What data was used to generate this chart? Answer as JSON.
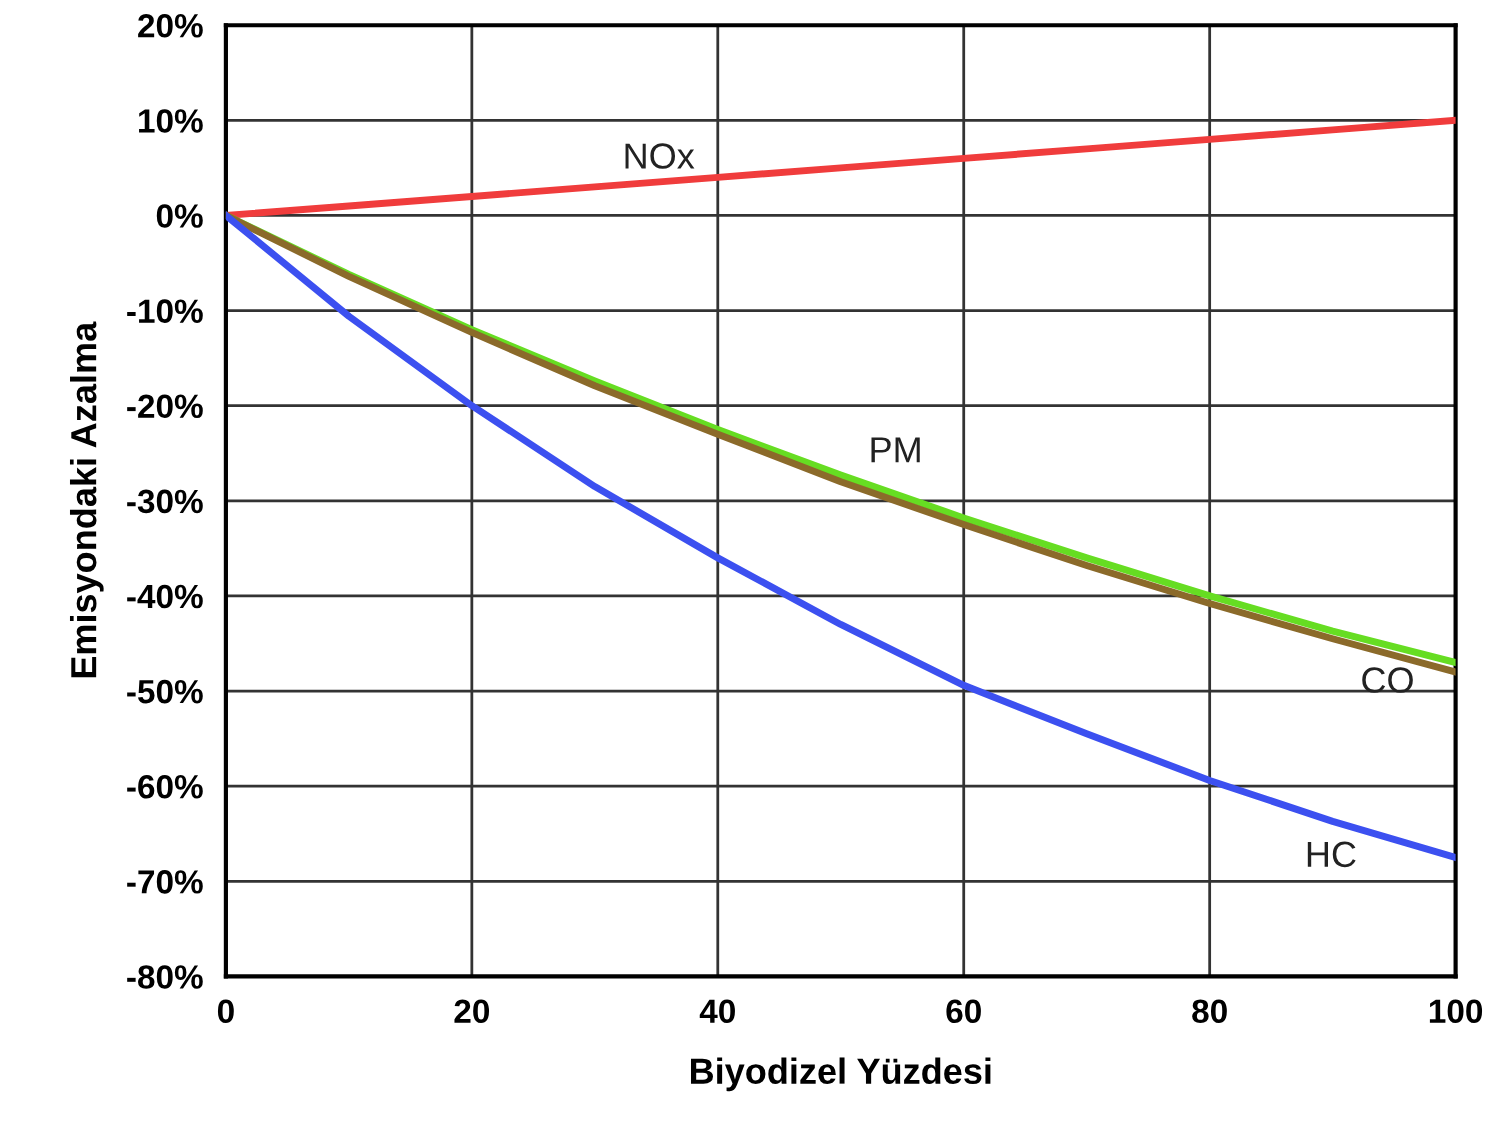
{
  "chart_data": {
    "type": "line",
    "xlabel": "Biyodizel Yüzdesi",
    "ylabel": "Emisyondaki Azalma",
    "x": [
      0,
      10,
      20,
      30,
      40,
      50,
      60,
      70,
      80,
      90,
      100
    ],
    "series": [
      {
        "name": "NOx",
        "color": "#f03c3c",
        "values": [
          0,
          1,
          2,
          3,
          4,
          5,
          6,
          7,
          8,
          9,
          10
        ]
      },
      {
        "name": "PM",
        "color": "#66dd22",
        "values": [
          0,
          -6.2,
          -12,
          -17.4,
          -22.5,
          -27.3,
          -31.8,
          -36,
          -40,
          -43.7,
          -47
        ]
      },
      {
        "name": "CO",
        "color": "#8b6a2a",
        "values": [
          0,
          -6.4,
          -12.3,
          -17.9,
          -23,
          -28,
          -32.5,
          -36.8,
          -40.8,
          -44.5,
          -48
        ]
      },
      {
        "name": "HC",
        "color": "#3c50f0",
        "values": [
          0,
          -10.6,
          -20,
          -28.5,
          -36,
          -43,
          -49.4,
          -54.5,
          -59.4,
          -63.7,
          -67.5
        ]
      }
    ],
    "xlim": [
      0,
      100
    ],
    "xticks": [
      0,
      20,
      40,
      60,
      80,
      100
    ],
    "ylim": [
      -80,
      20
    ],
    "yticks": [
      {
        "value": 20,
        "label": "20%"
      },
      {
        "value": 10,
        "label": "10%"
      },
      {
        "value": 0,
        "label": "0%"
      },
      {
        "value": -10,
        "label": "-10%"
      },
      {
        "value": -20,
        "label": "-20%"
      },
      {
        "value": -30,
        "label": "-30%"
      },
      {
        "value": -40,
        "label": "-40%"
      },
      {
        "value": -50,
        "label": "-50%"
      },
      {
        "value": -60,
        "label": "-60%"
      },
      {
        "value": -70,
        "label": "-70%"
      },
      {
        "value": -80,
        "label": "-80%"
      }
    ],
    "grid": true,
    "legend": false
  }
}
